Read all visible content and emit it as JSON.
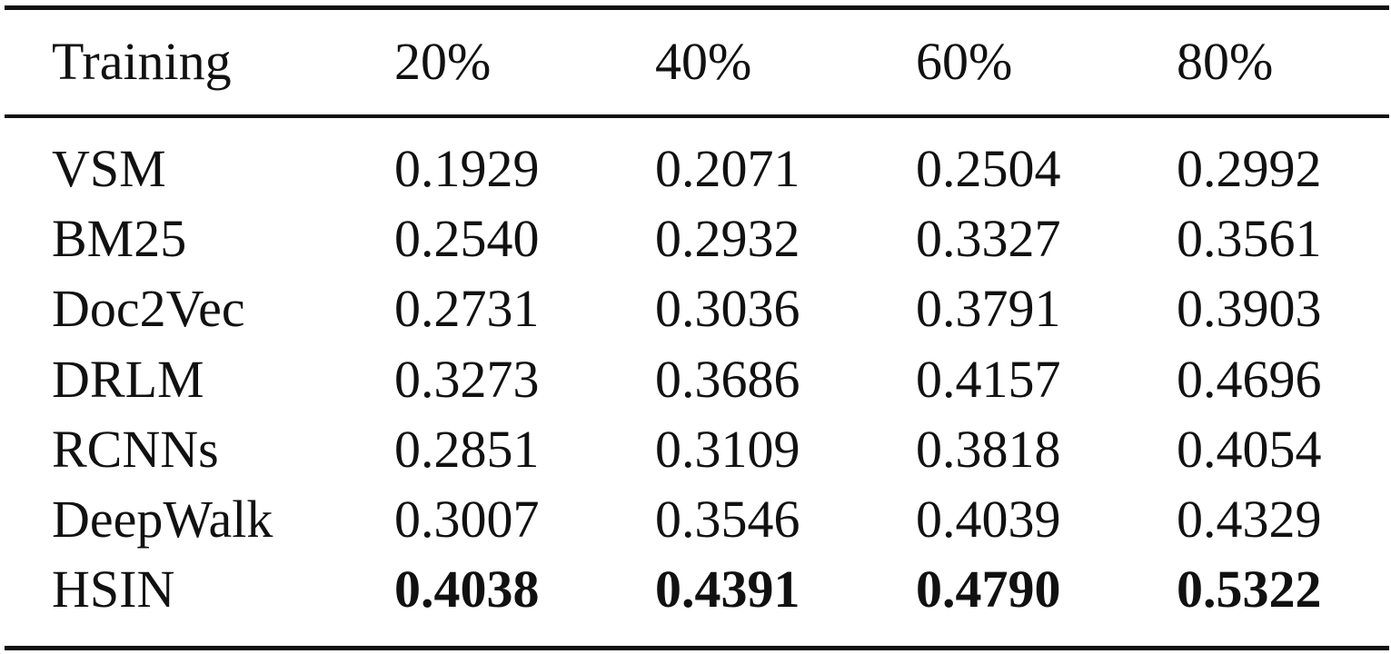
{
  "table": {
    "header": [
      "Training",
      "20%",
      "40%",
      "60%",
      "80%"
    ],
    "rows": [
      [
        "VSM",
        "0.1929",
        "0.2071",
        "0.2504",
        "0.2992"
      ],
      [
        "BM25",
        "0.2540",
        "0.2932",
        "0.3327",
        "0.3561"
      ],
      [
        "Doc2Vec",
        "0.2731",
        "0.3036",
        "0.3791",
        "0.3903"
      ],
      [
        "DRLM",
        "0.3273",
        "0.3686",
        "0.4157",
        "0.4696"
      ],
      [
        "RCNNs",
        "0.2851",
        "0.3109",
        "0.3818",
        "0.4054"
      ],
      [
        "DeepWalk",
        "0.3007",
        "0.3546",
        "0.4039",
        "0.4329"
      ],
      [
        "HSIN",
        "0.4038",
        "0.4391",
        "0.4790",
        "0.5322"
      ]
    ]
  }
}
